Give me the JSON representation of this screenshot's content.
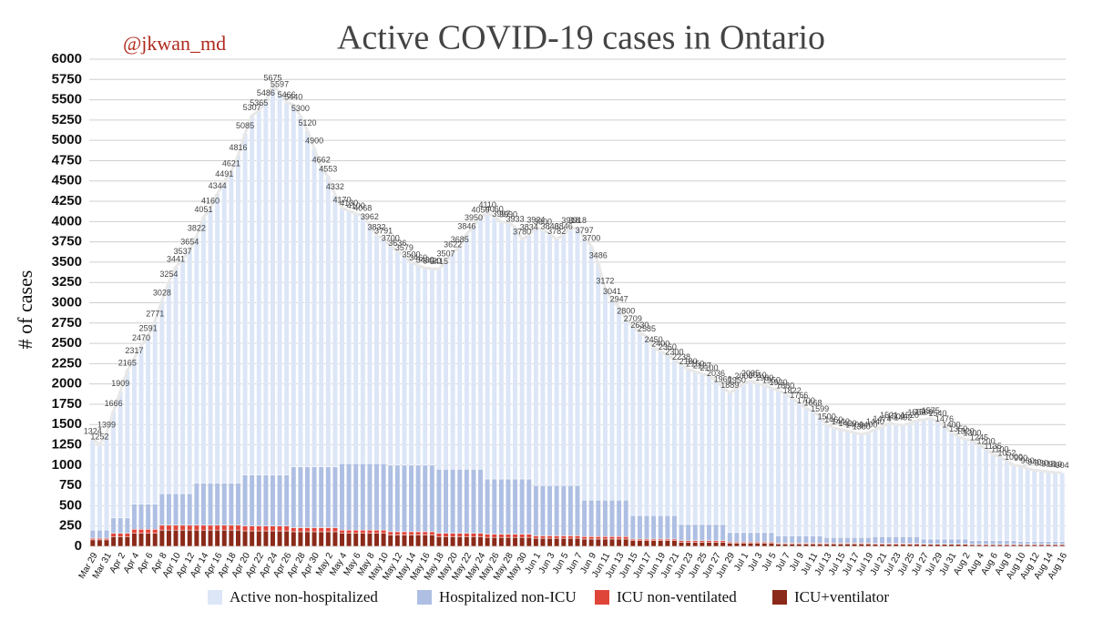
{
  "chart_data": {
    "type": "stacked_bar",
    "title": "Active COVID-19 cases in Ontario",
    "author": "@jkwan_md",
    "y_label": "# of cases",
    "ylim": [
      0,
      6000
    ],
    "yticks": [
      0,
      250,
      500,
      750,
      1000,
      1250,
      1500,
      1750,
      2000,
      2250,
      2500,
      2750,
      3000,
      3250,
      3500,
      3750,
      4000,
      4250,
      4500,
      4750,
      5000,
      5250,
      5500,
      5750,
      6000
    ],
    "grid": true,
    "categories": [
      "Mar 29",
      null,
      "Mar 31",
      null,
      "Apr 2",
      null,
      "Apr 4",
      null,
      "Apr 6",
      null,
      "Apr 8",
      null,
      "Apr 10",
      null,
      "Apr 12",
      null,
      "Apr 14",
      null,
      "Apr 16",
      null,
      "Apr 18",
      null,
      "Apr 20",
      null,
      "Apr 22",
      null,
      "Apr 24",
      null,
      "Apr 26",
      null,
      "Apr 28",
      null,
      "Apr 30",
      null,
      "May 2",
      null,
      "May 4",
      null,
      "May 6",
      null,
      "May 8",
      null,
      "May 10",
      null,
      "May 12",
      null,
      "May 14",
      null,
      "May 16",
      null,
      "May 18",
      null,
      "May 20",
      null,
      "May 22",
      null,
      "May 24",
      null,
      "May 26",
      null,
      "May 28",
      null,
      "May 30",
      null,
      "Jun 1",
      null,
      "Jun 3",
      null,
      "Jun 5",
      null,
      "Jun 7",
      null,
      "Jun 9",
      null,
      "Jun 11",
      null,
      "Jun 13",
      null,
      "Jun 15",
      null,
      "Jun 17",
      null,
      "Jun 19",
      null,
      "Jun 21",
      null,
      "Jun 23",
      null,
      "Jun 25",
      null,
      "Jun 27",
      null,
      "Jun 29",
      null,
      "Jul 1",
      null,
      "Jul 3",
      null,
      "Jul 5",
      null,
      "Jul 7",
      null,
      "Jul 9",
      null,
      "Jul 11",
      null,
      "Jul 13",
      null,
      "Jul 15",
      null,
      "Jul 17",
      null,
      "Jul 19",
      null,
      "Jul 21",
      null,
      "Jul 23",
      null,
      "Jul 25",
      null,
      "Jul 27",
      null,
      "Jul 29",
      null,
      "Jul 31",
      null,
      "Aug 2",
      null,
      "Aug 4",
      null,
      "Aug 6",
      null,
      "Aug 8",
      null,
      "Aug 10",
      null,
      "Aug 12",
      null,
      "Aug 14",
      null,
      "Aug 16"
    ],
    "totals": [
      1324,
      1252,
      1399,
      1666,
      1909,
      2165,
      2317,
      2470,
      2591,
      2771,
      3028,
      3254,
      3441,
      3537,
      3654,
      3822,
      4051,
      4160,
      4344,
      4491,
      4621,
      4816,
      5085,
      5307,
      5365,
      5486,
      5675,
      5597,
      5466,
      5440,
      5300,
      5120,
      4900,
      4662,
      4553,
      4332,
      4170,
      4130,
      4100,
      4068,
      3962,
      3832,
      3791,
      3700,
      3636,
      3579,
      3500,
      3460,
      3430,
      3420,
      3415,
      3507,
      3622,
      3685,
      3846,
      3950,
      4050,
      4110,
      4060,
      3997,
      3990,
      3933,
      3780,
      3834,
      3924,
      3900,
      3846,
      3782,
      3846,
      3918,
      3918,
      3797,
      3700,
      3486,
      3172,
      3041,
      2947,
      2800,
      2709,
      2630,
      2585,
      2450,
      2400,
      2360,
      2300,
      2238,
      2180,
      2150,
      2127,
      2100,
      2036,
      1960,
      1889,
      1950,
      2000,
      2035,
      2010,
      1980,
      1950,
      1920,
      1880,
      1822,
      1766,
      1700,
      1668,
      1599,
      1500,
      1460,
      1440,
      1420,
      1400,
      1380,
      1400,
      1440,
      1474,
      1521,
      1500,
      1492,
      1520,
      1550,
      1560,
      1575,
      1540,
      1476,
      1400,
      1350,
      1320,
      1300,
      1245,
      1200,
      1135,
      1100,
      1052,
      1000,
      990,
      960,
      940,
      930,
      918,
      910,
      904
    ],
    "series": [
      {
        "name": "ICU+ventilator",
        "color": "#8b2a1a",
        "values": [
          80,
          80,
          80,
          120,
          120,
          120,
          160,
          160,
          160,
          160,
          200,
          200,
          200,
          200,
          200,
          200,
          200,
          200,
          200,
          200,
          200,
          200,
          190,
          190,
          190,
          190,
          190,
          190,
          190,
          180,
          180,
          180,
          180,
          180,
          180,
          180,
          160,
          160,
          160,
          160,
          160,
          160,
          160,
          140,
          140,
          140,
          140,
          140,
          140,
          140,
          120,
          120,
          120,
          120,
          120,
          120,
          120,
          110,
          110,
          110,
          110,
          110,
          110,
          110,
          100,
          100,
          100,
          100,
          100,
          100,
          100,
          90,
          90,
          90,
          90,
          90,
          90,
          90,
          70,
          70,
          70,
          70,
          70,
          70,
          70,
          50,
          50,
          50,
          50,
          50,
          50,
          50,
          40,
          40,
          40,
          40,
          40,
          40,
          40,
          30,
          30,
          30,
          30,
          30,
          30,
          30,
          30,
          30,
          30,
          30,
          30,
          30,
          30,
          25,
          25,
          25,
          25,
          25,
          25,
          25,
          25,
          25,
          25,
          25,
          25,
          25,
          25,
          20,
          20,
          20,
          20,
          20,
          20,
          20,
          20,
          20,
          20,
          20,
          20,
          20,
          20
        ]
      },
      {
        "name": "ICU non-ventilated",
        "color": "#e0453a",
        "values": [
          20,
          20,
          20,
          40,
          40,
          40,
          50,
          50,
          50,
          50,
          60,
          60,
          60,
          60,
          60,
          60,
          60,
          60,
          60,
          60,
          60,
          60,
          60,
          60,
          60,
          60,
          60,
          60,
          60,
          50,
          50,
          50,
          50,
          50,
          50,
          50,
          40,
          40,
          40,
          40,
          40,
          40,
          40,
          40,
          40,
          40,
          40,
          40,
          40,
          40,
          40,
          40,
          40,
          40,
          40,
          40,
          40,
          40,
          40,
          40,
          40,
          40,
          40,
          40,
          30,
          30,
          30,
          30,
          30,
          30,
          30,
          30,
          30,
          30,
          30,
          30,
          30,
          30,
          20,
          20,
          20,
          20,
          20,
          20,
          20,
          20,
          20,
          20,
          20,
          20,
          20,
          20,
          15,
          15,
          15,
          15,
          15,
          15,
          15,
          10,
          10,
          10,
          10,
          10,
          10,
          10,
          10,
          10,
          10,
          10,
          10,
          10,
          10,
          10,
          10,
          10,
          10,
          10,
          10,
          10,
          5,
          5,
          5,
          5,
          5,
          5,
          5,
          5,
          5,
          5,
          5,
          5,
          5,
          5,
          5,
          5,
          5,
          5,
          5,
          5,
          5
        ]
      },
      {
        "name": "Hospitalized non-ICU",
        "color": "#aebfe3",
        "values": [
          100,
          100,
          100,
          190,
          190,
          190,
          310,
          310,
          310,
          310,
          390,
          390,
          390,
          390,
          390,
          520,
          520,
          520,
          520,
          520,
          520,
          520,
          630,
          630,
          630,
          630,
          630,
          630,
          630,
          750,
          750,
          750,
          750,
          750,
          750,
          750,
          820,
          820,
          820,
          820,
          820,
          820,
          820,
          820,
          820,
          820,
          820,
          820,
          820,
          820,
          790,
          790,
          790,
          790,
          790,
          790,
          790,
          680,
          680,
          680,
          680,
          680,
          680,
          680,
          620,
          620,
          620,
          620,
          620,
          620,
          620,
          450,
          450,
          450,
          450,
          450,
          450,
          450,
          290,
          290,
          290,
          290,
          290,
          290,
          290,
          200,
          200,
          200,
          200,
          200,
          200,
          200,
          115,
          115,
          115,
          115,
          115,
          115,
          115,
          90,
          90,
          90,
          90,
          90,
          90,
          90,
          70,
          70,
          70,
          70,
          70,
          70,
          70,
          85,
          85,
          85,
          85,
          85,
          85,
          85,
          60,
          60,
          60,
          60,
          60,
          60,
          60,
          45,
          45,
          45,
          45,
          45,
          45,
          45,
          35,
          35,
          35,
          35,
          35,
          35,
          35
        ]
      },
      {
        "name": "Active non-hospitalized",
        "color": "#dce6f7",
        "values": [
          1124,
          1052,
          1199,
          1316,
          1559,
          1815,
          1797,
          1950,
          2071,
          2251,
          2378,
          2604,
          2791,
          2887,
          3004,
          3042,
          3271,
          3380,
          3564,
          3711,
          3841,
          4036,
          4205,
          4427,
          4485,
          4606,
          4795,
          4717,
          4586,
          4460,
          4320,
          4140,
          3920,
          3682,
          3573,
          3352,
          3150,
          3110,
          3080,
          3048,
          2942,
          2812,
          2771,
          2700,
          2636,
          2579,
          2500,
          2460,
          2430,
          2420,
          2465,
          2557,
          2672,
          2735,
          2896,
          3000,
          3100,
          3280,
          3230,
          3167,
          3160,
          3103,
          2950,
          3004,
          3174,
          3150,
          3096,
          3032,
          3096,
          3168,
          3168,
          3227,
          3130,
          2916,
          2602,
          2471,
          2377,
          2230,
          2329,
          2250,
          2205,
          2070,
          2020,
          1980,
          1920,
          1968,
          1910,
          1880,
          1857,
          1830,
          1766,
          1690,
          1719,
          1780,
          1830,
          1865,
          1840,
          1810,
          1780,
          1790,
          1750,
          1692,
          1636,
          1570,
          1538,
          1469,
          1390,
          1350,
          1330,
          1310,
          1290,
          1270,
          1290,
          1320,
          1354,
          1401,
          1380,
          1372,
          1400,
          1430,
          1470,
          1485,
          1450,
          1386,
          1310,
          1260,
          1230,
          1230,
          1175,
          1130,
          1065,
          1030,
          982,
          930,
          930,
          900,
          880,
          870,
          858,
          850,
          844
        ]
      }
    ],
    "legend_order": [
      3,
      2,
      1,
      0
    ]
  }
}
